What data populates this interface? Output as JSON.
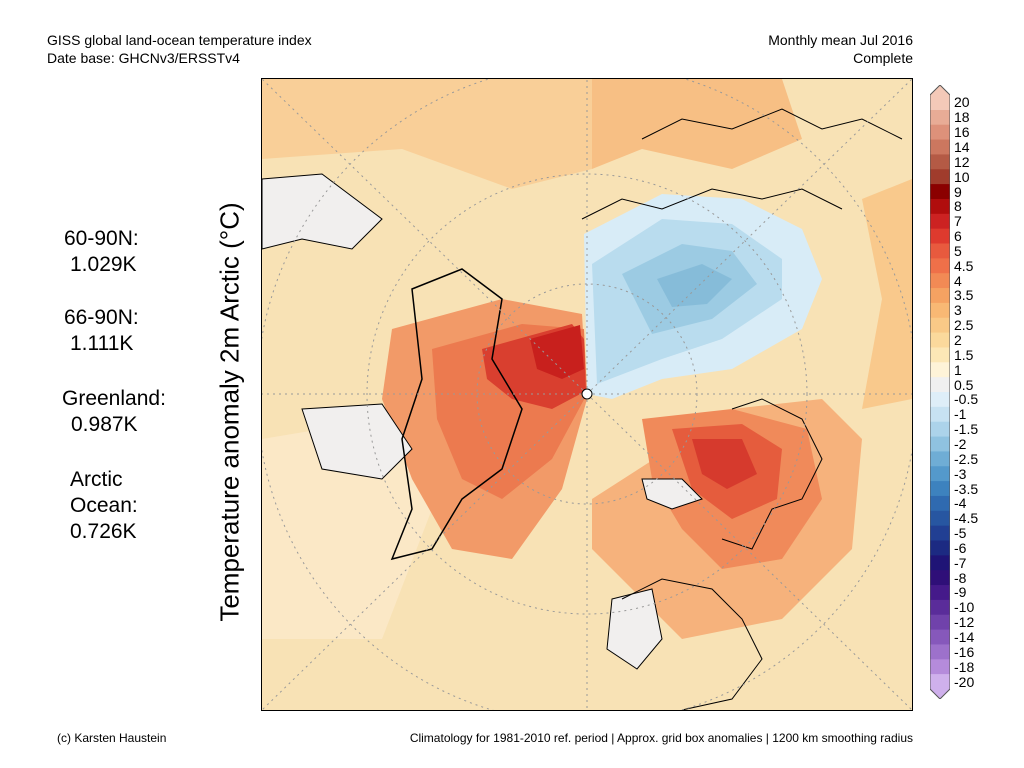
{
  "header": {
    "left_line1": "GISS global land-ocean temperature index",
    "left_line2": "Date base: GHCNv3/ERSSTv4",
    "right_line1": "Monthly mean Jul 2016",
    "right_line2": "Complete"
  },
  "stats": [
    {
      "region": "60-90N:",
      "value": "1.029K"
    },
    {
      "region": "66-90N:",
      "value": "1.111K"
    },
    {
      "region": "Greenland:",
      "value": "0.987K"
    },
    {
      "region": "Arctic Ocean:",
      "value": "0.726K"
    }
  ],
  "ylabel": "Temperature anomaly 2m Arctic (°C)",
  "colorbar": {
    "labels": [
      "20",
      "18",
      "16",
      "14",
      "12",
      "10",
      "9",
      "8",
      "7",
      "6",
      "5",
      "4.5",
      "4",
      "3.5",
      "3",
      "2.5",
      "2",
      "1.5",
      "1",
      "0.5",
      "-0.5",
      "-1",
      "-1.5",
      "-2",
      "-2.5",
      "-3",
      "-3.5",
      "-4",
      "-4.5",
      "-5",
      "-6",
      "-7",
      "-8",
      "-9",
      "-10",
      "-12",
      "-14",
      "-16",
      "-18",
      "-20"
    ],
    "colors": [
      "#f4c9b8",
      "#e8ac96",
      "#dd917a",
      "#cc775f",
      "#b45a45",
      "#a03c2c",
      "#8b0000",
      "#b00d0d",
      "#cc2222",
      "#de3a2e",
      "#e85a3e",
      "#ef7049",
      "#f28a55",
      "#f5a262",
      "#f8b874",
      "#f9c987",
      "#fbd99c",
      "#fce7b6",
      "#fef3d8",
      "#f0f0f0",
      "#deeef8",
      "#c7e2f2",
      "#acd3ea",
      "#8fc2e0",
      "#6fadd5",
      "#5499cb",
      "#3d82be",
      "#2f6ab0",
      "#2756a1",
      "#213f93",
      "#1c2a82",
      "#1f1476",
      "#2f0f78",
      "#451a8a",
      "#5a2c9a",
      "#7042ab",
      "#8658bb",
      "#9d71cb",
      "#b58bdb",
      "#cfb0ec"
    ]
  },
  "footer": {
    "left": "(c) Karsten Haustein",
    "right": "Climatology for 1981-2010 ref. period | Approx. grid box anomalies | 1200 km smoothing radius"
  }
}
